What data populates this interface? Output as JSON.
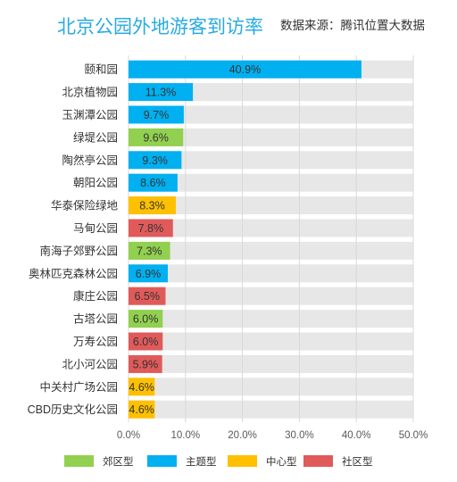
{
  "title": "北京公园外地游客到访率",
  "source": "数据来源：腾讯位置大数据",
  "chart_data": {
    "type": "bar",
    "orientation": "horizontal",
    "categories": [
      "颐和园",
      "北京植物园",
      "玉渊潭公园",
      "绿堤公园",
      "陶然亭公园",
      "朝阳公园",
      "华泰保险绿地",
      "马甸公园",
      "南海子郊野公园",
      "奥林匹克森林公园",
      "康庄公园",
      "古塔公园",
      "万寿公园",
      "北小河公园",
      "中关村广场公园",
      "CBD历史文化公园"
    ],
    "values": [
      40.9,
      11.3,
      9.7,
      9.6,
      9.3,
      8.6,
      8.3,
      7.8,
      7.3,
      6.9,
      6.5,
      6.0,
      6.0,
      5.9,
      4.6,
      4.6
    ],
    "value_labels": [
      "40.9%",
      "11.3%",
      "9.7%",
      "9.6%",
      "9.3%",
      "8.6%",
      "8.3%",
      "7.8%",
      "7.3%",
      "6.9%",
      "6.5%",
      "6.0%",
      "6.0%",
      "5.9%",
      "4.6%",
      "4.6%"
    ],
    "groups": [
      "主题型",
      "主题型",
      "主题型",
      "郊区型",
      "主题型",
      "主题型",
      "中心型",
      "社区型",
      "郊区型",
      "主题型",
      "社区型",
      "郊区型",
      "社区型",
      "社区型",
      "中心型",
      "中心型"
    ],
    "xlim": [
      0,
      50
    ],
    "xticks": [
      "0.0%",
      "10.0%",
      "20.0%",
      "30.0%",
      "40.0%",
      "50.0%"
    ],
    "xtick_values": [
      0,
      10,
      20,
      30,
      40,
      50
    ],
    "grid": true,
    "background_track_max": 50,
    "legend_position": "bottom",
    "legend": [
      {
        "name": "郊区型",
        "color": "#92d050"
      },
      {
        "name": "主题型",
        "color": "#00b0f0"
      },
      {
        "name": "中心型",
        "color": "#ffc000"
      },
      {
        "name": "社区型",
        "color": "#e05a5a"
      }
    ],
    "track_color": "#e7e7e7",
    "label_color": "#333333"
  }
}
